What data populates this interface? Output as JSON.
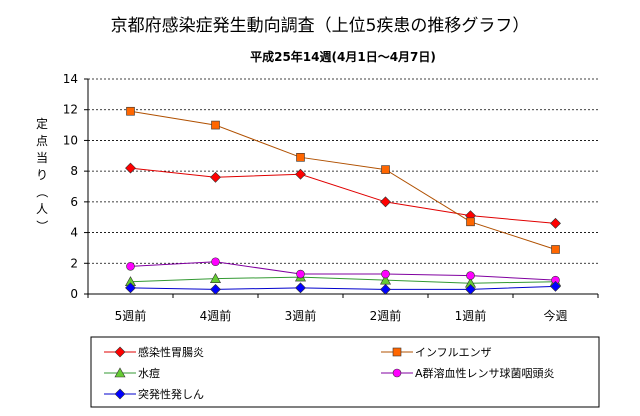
{
  "chart_data": {
    "type": "line",
    "title": "京都府感染症発生動向調査（上位5疾患の推移グラフ）",
    "subtitle": "平成25年14週(4月1日～4月7日)",
    "ylabel": "定点当り（人）",
    "xlabel": "",
    "categories": [
      "5週前",
      "4週前",
      "3週前",
      "2週前",
      "1週前",
      "今週"
    ],
    "ylim": [
      0,
      14
    ],
    "yticks": [
      0,
      2,
      4,
      6,
      8,
      10,
      12,
      14
    ],
    "grid": true,
    "legend_position": "bottom",
    "series": [
      {
        "name": "感染性胃腸炎",
        "values": [
          8.2,
          7.6,
          7.8,
          6.0,
          5.1,
          4.6
        ],
        "color": "#e00000",
        "marker": "diamond",
        "marker_color": "#ff0000"
      },
      {
        "name": "インフルエンザ",
        "values": [
          11.9,
          11.0,
          8.9,
          8.1,
          4.7,
          2.9
        ],
        "color": "#b05000",
        "marker": "square",
        "marker_color": "#ff6600"
      },
      {
        "name": "水痘",
        "values": [
          0.8,
          1.0,
          1.1,
          0.9,
          0.7,
          0.8
        ],
        "color": "#339933",
        "marker": "triangle",
        "marker_color": "#66cc33"
      },
      {
        "name": "A群溶血性レンサ球菌咽頭炎",
        "values": [
          1.8,
          2.1,
          1.3,
          1.3,
          1.2,
          0.9
        ],
        "color": "#8000a0",
        "marker": "circle",
        "marker_color": "#ff00ff"
      },
      {
        "name": "突発性発しん",
        "values": [
          0.4,
          0.3,
          0.4,
          0.3,
          0.3,
          0.5
        ],
        "color": "#0000cc",
        "marker": "diamond",
        "marker_color": "#0000ff"
      }
    ]
  }
}
